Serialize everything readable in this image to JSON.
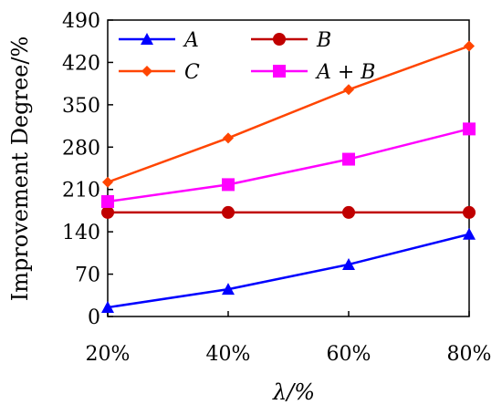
{
  "chart_data": {
    "type": "line",
    "title": "",
    "xlabel": "λ/%",
    "ylabel": "Improvement Degree/%",
    "categories": [
      "20%",
      "40%",
      "60%",
      "80%"
    ],
    "ylim": [
      0,
      490
    ],
    "yticks": [
      0,
      70,
      140,
      210,
      280,
      350,
      420,
      490
    ],
    "grid": false,
    "legend_position": "top",
    "series": [
      {
        "name": "A",
        "values": [
          15,
          45,
          86,
          136
        ],
        "color": "#0000ff",
        "marker": "triangle"
      },
      {
        "name": "B",
        "values": [
          172,
          172,
          172,
          172
        ],
        "color": "#c00000",
        "marker": "circle"
      },
      {
        "name": "C",
        "values": [
          222,
          295,
          375,
          447
        ],
        "color": "#ff4500",
        "marker": "diamond"
      },
      {
        "name": "A + B",
        "values": [
          190,
          218,
          260,
          310
        ],
        "color": "#ff00ff",
        "marker": "square"
      }
    ]
  }
}
